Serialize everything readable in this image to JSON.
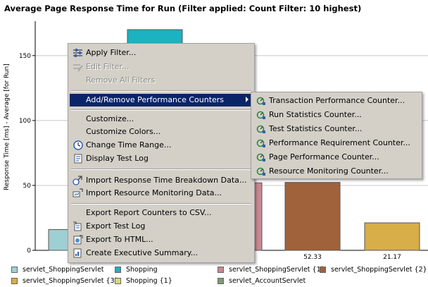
{
  "chart_data": {
    "type": "bar",
    "title": "Average Page Response Time for Run (Filter applied: Count Filter: 10 highest)",
    "ylabel": "Response Time [ms] - Average [for Run]",
    "ylim": [
      0,
      170
    ],
    "yticks": [
      0,
      50,
      100,
      150
    ],
    "grid": true,
    "legend_position": "bottom",
    "series": [
      {
        "name": "servlet_ShoppingServlet",
        "value": 16,
        "color": "#9ecfd3"
      },
      {
        "name": "Shopping",
        "value": 170,
        "color": "#1bb2c2"
      },
      {
        "name": "servlet_ShoppingServlet {1}",
        "value": 52,
        "color": "#c98890"
      },
      {
        "name": "servlet_ShoppingServlet {2}",
        "value": 52.33,
        "color": "#a0623a",
        "data_label": "52.33"
      },
      {
        "name": "servlet_ShoppingServlet {3}",
        "value": 21.17,
        "color": "#d7ae47",
        "data_label": "21.17"
      },
      {
        "name": "Shopping {1}",
        "color": "#d7d77a"
      },
      {
        "name": "servlet_AccountServlet",
        "color": "#7e9a74"
      }
    ]
  },
  "context_menu": {
    "items": [
      {
        "label": "Apply Filter...",
        "icon": "filter-icon",
        "enabled": true
      },
      {
        "label": "Edit Filter...",
        "icon": "edit-filter-icon",
        "enabled": false
      },
      {
        "label": "Remove All Filters",
        "enabled": false
      },
      {
        "label": "Add/Remove Performance Counters",
        "highlighted": true,
        "has_submenu": true
      },
      {
        "label": "Customize..."
      },
      {
        "label": "Customize Colors..."
      },
      {
        "label": "Change Time Range...",
        "icon": "clock-icon"
      },
      {
        "label": "Display Test Log",
        "icon": "test-log-icon"
      },
      {
        "label": "Import Response Time Breakdown Data...",
        "icon": "import-breakdown-icon"
      },
      {
        "label": "Import Resource Monitoring Data...",
        "icon": "import-monitoring-icon"
      },
      {
        "label": "Export Report Counters to CSV..."
      },
      {
        "label": "Export Test Log",
        "icon": "export-log-icon"
      },
      {
        "label": "Export To HTML...",
        "icon": "export-html-icon"
      },
      {
        "label": "Create Executive Summary...",
        "icon": "summary-icon"
      }
    ]
  },
  "submenu": {
    "items": [
      {
        "label": "Transaction Performance Counter...",
        "icon": "counter-icon"
      },
      {
        "label": "Run Statistics Counter...",
        "icon": "counter-icon"
      },
      {
        "label": "Test Statistics Counter...",
        "icon": "counter-icon"
      },
      {
        "label": "Performance Requirement Counter...",
        "icon": "counter-icon"
      },
      {
        "label": "Page Performance Counter...",
        "icon": "counter-icon"
      },
      {
        "label": "Resource Monitoring Counter...",
        "icon": "counter-icon"
      }
    ]
  }
}
